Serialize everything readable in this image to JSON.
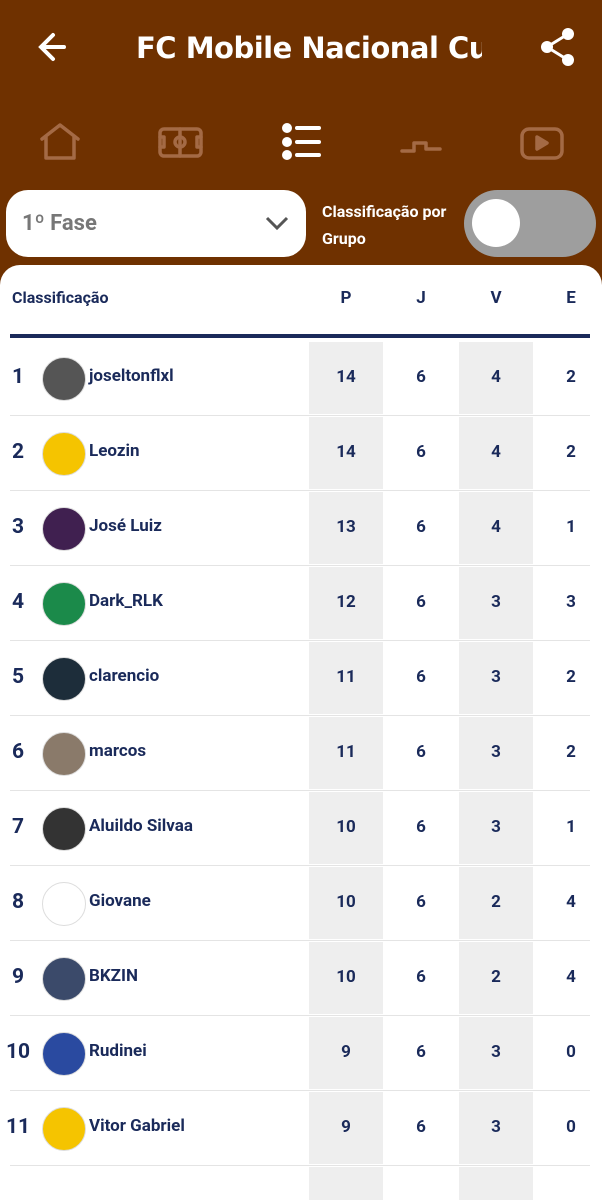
{
  "header": {
    "title": "FC Mobile Nacional Cup"
  },
  "filters": {
    "phase": "1º Fase",
    "group_toggle_label": "Classificação por Grupo"
  },
  "table": {
    "columns": [
      "Classificação",
      "P",
      "J",
      "V",
      "E"
    ],
    "rows": [
      {
        "rank": 1,
        "name": "joseltonflxl",
        "P": 14,
        "J": 6,
        "V": 4,
        "E": 2
      },
      {
        "rank": 2,
        "name": "Leozin",
        "P": 14,
        "J": 6,
        "V": 4,
        "E": 2
      },
      {
        "rank": 3,
        "name": "José Luiz",
        "P": 13,
        "J": 6,
        "V": 4,
        "E": 1
      },
      {
        "rank": 4,
        "name": "Dark_RLK",
        "P": 12,
        "J": 6,
        "V": 3,
        "E": 3
      },
      {
        "rank": 5,
        "name": "clarencio",
        "P": 11,
        "J": 6,
        "V": 3,
        "E": 2
      },
      {
        "rank": 6,
        "name": "marcos",
        "P": 11,
        "J": 6,
        "V": 3,
        "E": 2
      },
      {
        "rank": 7,
        "name": "Aluildo Silvaa",
        "P": 10,
        "J": 6,
        "V": 3,
        "E": 1
      },
      {
        "rank": 8,
        "name": "Giovane",
        "P": 10,
        "J": 6,
        "V": 2,
        "E": 4
      },
      {
        "rank": 9,
        "name": "BKZIN",
        "P": 10,
        "J": 6,
        "V": 2,
        "E": 4
      },
      {
        "rank": 10,
        "name": "Rudinei",
        "P": 9,
        "J": 6,
        "V": 3,
        "E": 0
      },
      {
        "rank": 11,
        "name": "Vitor Gabriel",
        "P": 9,
        "J": 6,
        "V": 3,
        "E": 0
      }
    ]
  }
}
